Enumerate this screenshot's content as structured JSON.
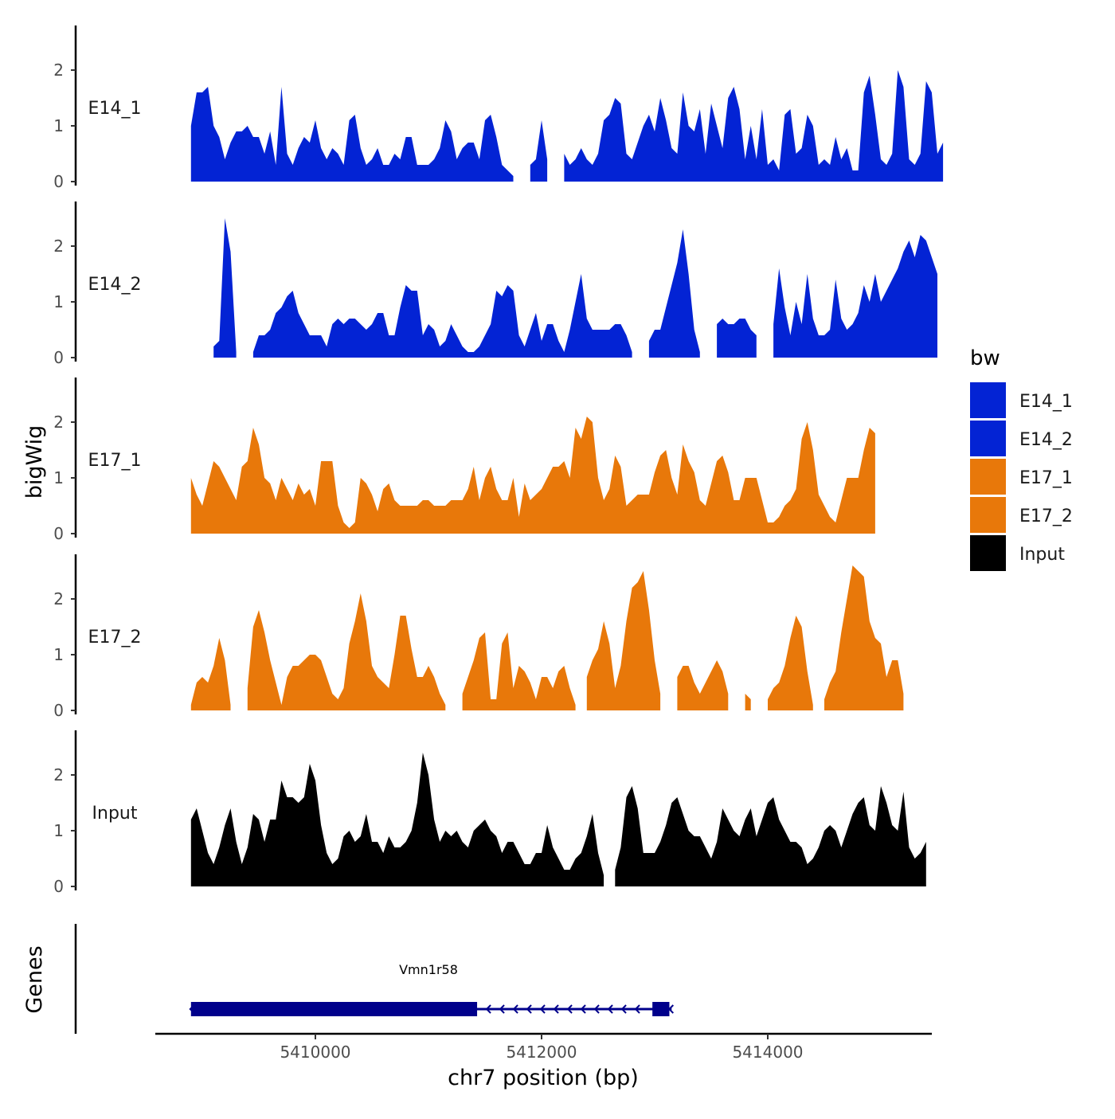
{
  "chart_data": {
    "type": "area",
    "title": "",
    "xlabel": "chr7 position (bp)",
    "ylabel": "bigWig",
    "xlim": [
      5408500,
      5415400
    ],
    "ylim": [
      0,
      2.8
    ],
    "x_ticks": [
      5410000,
      5412000,
      5414000
    ],
    "x_tick_labels": [
      "5410000",
      "5412000",
      "5414000"
    ],
    "y_ticks": [
      0,
      1,
      2
    ],
    "y_tick_labels": [
      "0",
      "1",
      "2"
    ],
    "x_start": 5408900,
    "x_step": 50,
    "legend": {
      "title": "bw",
      "position": "right",
      "entries": [
        {
          "name": "E14_1",
          "color": "#0323D4"
        },
        {
          "name": "E14_2",
          "color": "#0323D4"
        },
        {
          "name": "E17_1",
          "color": "#E8780A"
        },
        {
          "name": "E17_2",
          "color": "#E8780A"
        },
        {
          "name": "Input",
          "color": "#000000"
        }
      ]
    },
    "series": [
      {
        "name": "E14_1",
        "color": "#0323D4",
        "values": [
          1.0,
          1.6,
          1.6,
          1.7,
          1.0,
          0.8,
          0.4,
          0.7,
          0.9,
          0.9,
          1.0,
          0.8,
          0.8,
          0.5,
          0.9,
          0.3,
          1.7,
          0.5,
          0.3,
          0.6,
          0.8,
          0.7,
          1.1,
          0.6,
          0.4,
          0.6,
          0.5,
          0.3,
          1.1,
          1.2,
          0.6,
          0.3,
          0.4,
          0.6,
          0.3,
          0.3,
          0.5,
          0.4,
          0.8,
          0.8,
          0.3,
          0.3,
          0.3,
          0.4,
          0.6,
          1.1,
          0.9,
          0.4,
          0.6,
          0.7,
          0.7,
          0.4,
          1.1,
          1.2,
          0.8,
          0.3,
          0.2,
          0.1,
          null,
          null,
          0.3,
          0.4,
          1.1,
          0.4,
          null,
          null,
          0.5,
          0.3,
          0.4,
          0.6,
          0.4,
          0.3,
          0.5,
          1.1,
          1.2,
          1.5,
          1.4,
          0.5,
          0.4,
          0.7,
          1.0,
          1.2,
          0.9,
          1.5,
          1.1,
          0.6,
          0.5,
          1.6,
          1.0,
          0.9,
          1.3,
          0.5,
          1.4,
          1.0,
          0.6,
          1.5,
          1.7,
          1.3,
          0.4,
          1.0,
          0.4,
          1.3,
          0.3,
          0.4,
          0.2,
          1.2,
          1.3,
          0.5,
          0.6,
          1.2,
          1.0,
          0.3,
          0.4,
          0.3,
          0.8,
          0.4,
          0.6,
          0.2,
          0.2,
          1.6,
          1.9,
          1.2,
          0.4,
          0.3,
          0.5,
          2.0,
          1.7,
          0.4,
          0.3,
          0.5,
          1.8,
          1.6,
          0.5,
          0.7
        ]
      },
      {
        "name": "E14_2",
        "color": "#0323D4",
        "values": [
          null,
          null,
          null,
          null,
          0.2,
          0.3,
          2.5,
          1.9,
          0.1,
          null,
          null,
          0.1,
          0.4,
          0.4,
          0.5,
          0.8,
          0.9,
          1.1,
          1.2,
          0.8,
          0.6,
          0.4,
          0.4,
          0.4,
          0.2,
          0.6,
          0.7,
          0.6,
          0.7,
          0.7,
          0.6,
          0.5,
          0.6,
          0.8,
          0.8,
          0.4,
          0.4,
          0.9,
          1.3,
          1.2,
          1.2,
          0.4,
          0.6,
          0.5,
          0.2,
          0.3,
          0.6,
          0.4,
          0.2,
          0.1,
          0.1,
          0.2,
          0.4,
          0.6,
          1.2,
          1.1,
          1.3,
          1.2,
          0.4,
          0.2,
          0.5,
          0.8,
          0.3,
          0.6,
          0.6,
          0.3,
          0.1,
          0.5,
          1.0,
          1.5,
          0.7,
          0.5,
          0.5,
          0.5,
          0.5,
          0.6,
          0.6,
          0.4,
          0.1,
          null,
          null,
          0.3,
          0.5,
          0.5,
          0.9,
          1.3,
          1.7,
          2.3,
          1.5,
          0.5,
          0.1,
          null,
          null,
          0.6,
          0.7,
          0.6,
          0.6,
          0.7,
          0.7,
          0.5,
          0.4,
          null,
          null,
          0.6,
          1.6,
          0.9,
          0.4,
          1.0,
          0.6,
          1.5,
          0.7,
          0.4,
          0.4,
          0.5,
          1.4,
          0.7,
          0.5,
          0.6,
          0.8,
          1.3,
          1.0,
          1.5,
          1.0,
          1.2,
          1.4,
          1.6,
          1.9,
          2.1,
          1.8,
          2.2,
          2.1,
          1.8,
          1.5
        ]
      },
      {
        "name": "E17_1",
        "color": "#E8780A",
        "values": [
          1.0,
          0.7,
          0.5,
          0.9,
          1.3,
          1.2,
          1.0,
          0.8,
          0.6,
          1.2,
          1.3,
          1.9,
          1.6,
          1.0,
          0.9,
          0.6,
          1.0,
          0.8,
          0.6,
          0.9,
          0.7,
          0.8,
          0.5,
          1.3,
          1.3,
          1.3,
          0.5,
          0.2,
          0.1,
          0.2,
          1.0,
          0.9,
          0.7,
          0.4,
          0.8,
          0.9,
          0.6,
          0.5,
          0.5,
          0.5,
          0.5,
          0.6,
          0.6,
          0.5,
          0.5,
          0.5,
          0.6,
          0.6,
          0.6,
          0.8,
          1.2,
          0.6,
          1.0,
          1.2,
          0.8,
          0.6,
          0.6,
          1.0,
          0.3,
          0.9,
          0.6,
          0.7,
          0.8,
          1.0,
          1.2,
          1.2,
          1.3,
          1.0,
          1.9,
          1.7,
          2.1,
          2.0,
          1.0,
          0.6,
          0.8,
          1.4,
          1.2,
          0.5,
          0.6,
          0.7,
          0.7,
          0.7,
          1.1,
          1.4,
          1.5,
          1.0,
          0.7,
          1.6,
          1.3,
          1.1,
          0.6,
          0.5,
          0.9,
          1.3,
          1.4,
          1.1,
          0.6,
          0.6,
          1.0,
          1.0,
          1.0,
          0.6,
          0.2,
          0.2,
          0.3,
          0.5,
          0.6,
          0.8,
          1.7,
          2.0,
          1.5,
          0.7,
          0.5,
          0.3,
          0.2,
          0.6,
          1.0,
          1.0,
          1.0,
          1.5,
          1.9,
          1.8
        ]
      },
      {
        "name": "E17_2",
        "color": "#E8780A",
        "values": [
          0.1,
          0.5,
          0.6,
          0.5,
          0.8,
          1.3,
          0.9,
          0.1,
          null,
          null,
          0.4,
          1.5,
          1.8,
          1.4,
          0.9,
          0.5,
          0.1,
          0.6,
          0.8,
          0.8,
          0.9,
          1.0,
          1.0,
          0.9,
          0.6,
          0.3,
          0.2,
          0.4,
          1.2,
          1.6,
          2.1,
          1.6,
          0.8,
          0.6,
          0.5,
          0.4,
          1.0,
          1.7,
          1.7,
          1.1,
          0.6,
          0.6,
          0.8,
          0.6,
          0.3,
          0.1,
          null,
          null,
          0.3,
          0.6,
          0.9,
          1.3,
          1.4,
          0.2,
          0.2,
          1.2,
          1.4,
          0.4,
          0.8,
          0.7,
          0.5,
          0.2,
          0.6,
          0.6,
          0.4,
          0.7,
          0.8,
          0.4,
          0.1,
          null,
          0.6,
          0.9,
          1.1,
          1.6,
          1.2,
          0.4,
          0.8,
          1.6,
          2.2,
          2.3,
          2.5,
          1.8,
          0.9,
          0.3,
          null,
          null,
          0.6,
          0.8,
          0.8,
          0.5,
          0.3,
          0.5,
          0.7,
          0.9,
          0.7,
          0.3,
          null,
          null,
          0.3,
          0.2,
          null,
          null,
          0.2,
          0.4,
          0.5,
          0.8,
          1.3,
          1.7,
          1.5,
          0.7,
          0.1,
          null,
          0.2,
          0.5,
          0.7,
          1.4,
          2.0,
          2.6,
          2.5,
          2.4,
          1.6,
          1.3,
          1.2,
          0.6,
          0.9,
          0.9,
          0.3
        ]
      },
      {
        "name": "Input",
        "color": "#000000",
        "values": [
          1.2,
          1.4,
          1.0,
          0.6,
          0.4,
          0.7,
          1.1,
          1.4,
          0.8,
          0.4,
          0.7,
          1.3,
          1.2,
          0.8,
          1.2,
          1.2,
          1.9,
          1.6,
          1.6,
          1.5,
          1.6,
          2.2,
          1.9,
          1.1,
          0.6,
          0.4,
          0.5,
          0.9,
          1.0,
          0.8,
          0.9,
          1.3,
          0.8,
          0.8,
          0.6,
          0.9,
          0.7,
          0.7,
          0.8,
          1.0,
          1.5,
          2.4,
          2.0,
          1.2,
          0.8,
          1.0,
          0.9,
          1.0,
          0.8,
          0.7,
          1.0,
          1.1,
          1.2,
          1.0,
          0.9,
          0.6,
          0.8,
          0.8,
          0.6,
          0.4,
          0.4,
          0.6,
          0.6,
          1.1,
          0.7,
          0.5,
          0.3,
          0.3,
          0.5,
          0.6,
          0.9,
          1.3,
          0.6,
          0.2,
          null,
          0.3,
          0.7,
          1.6,
          1.8,
          1.4,
          0.6,
          0.6,
          0.6,
          0.8,
          1.1,
          1.5,
          1.6,
          1.3,
          1.0,
          0.9,
          0.9,
          0.7,
          0.5,
          0.8,
          1.4,
          1.2,
          1.0,
          0.9,
          1.2,
          1.4,
          0.9,
          1.2,
          1.5,
          1.6,
          1.2,
          1.0,
          0.8,
          0.8,
          0.7,
          0.4,
          0.5,
          0.7,
          1.0,
          1.1,
          1.0,
          0.7,
          1.0,
          1.3,
          1.5,
          1.6,
          1.1,
          1.0,
          1.8,
          1.5,
          1.1,
          1.0,
          1.7,
          0.7,
          0.5,
          0.6,
          0.8
        ]
      }
    ],
    "gene_track": {
      "title": "Genes",
      "genes": [
        {
          "name": "Vmn1r58",
          "start": 5408900,
          "end": 5413150,
          "strand": "-",
          "color": "#00008B",
          "exons": [
            [
              5408900,
              5411430
            ],
            [
              5412980,
              5413130
            ]
          ]
        }
      ]
    }
  }
}
